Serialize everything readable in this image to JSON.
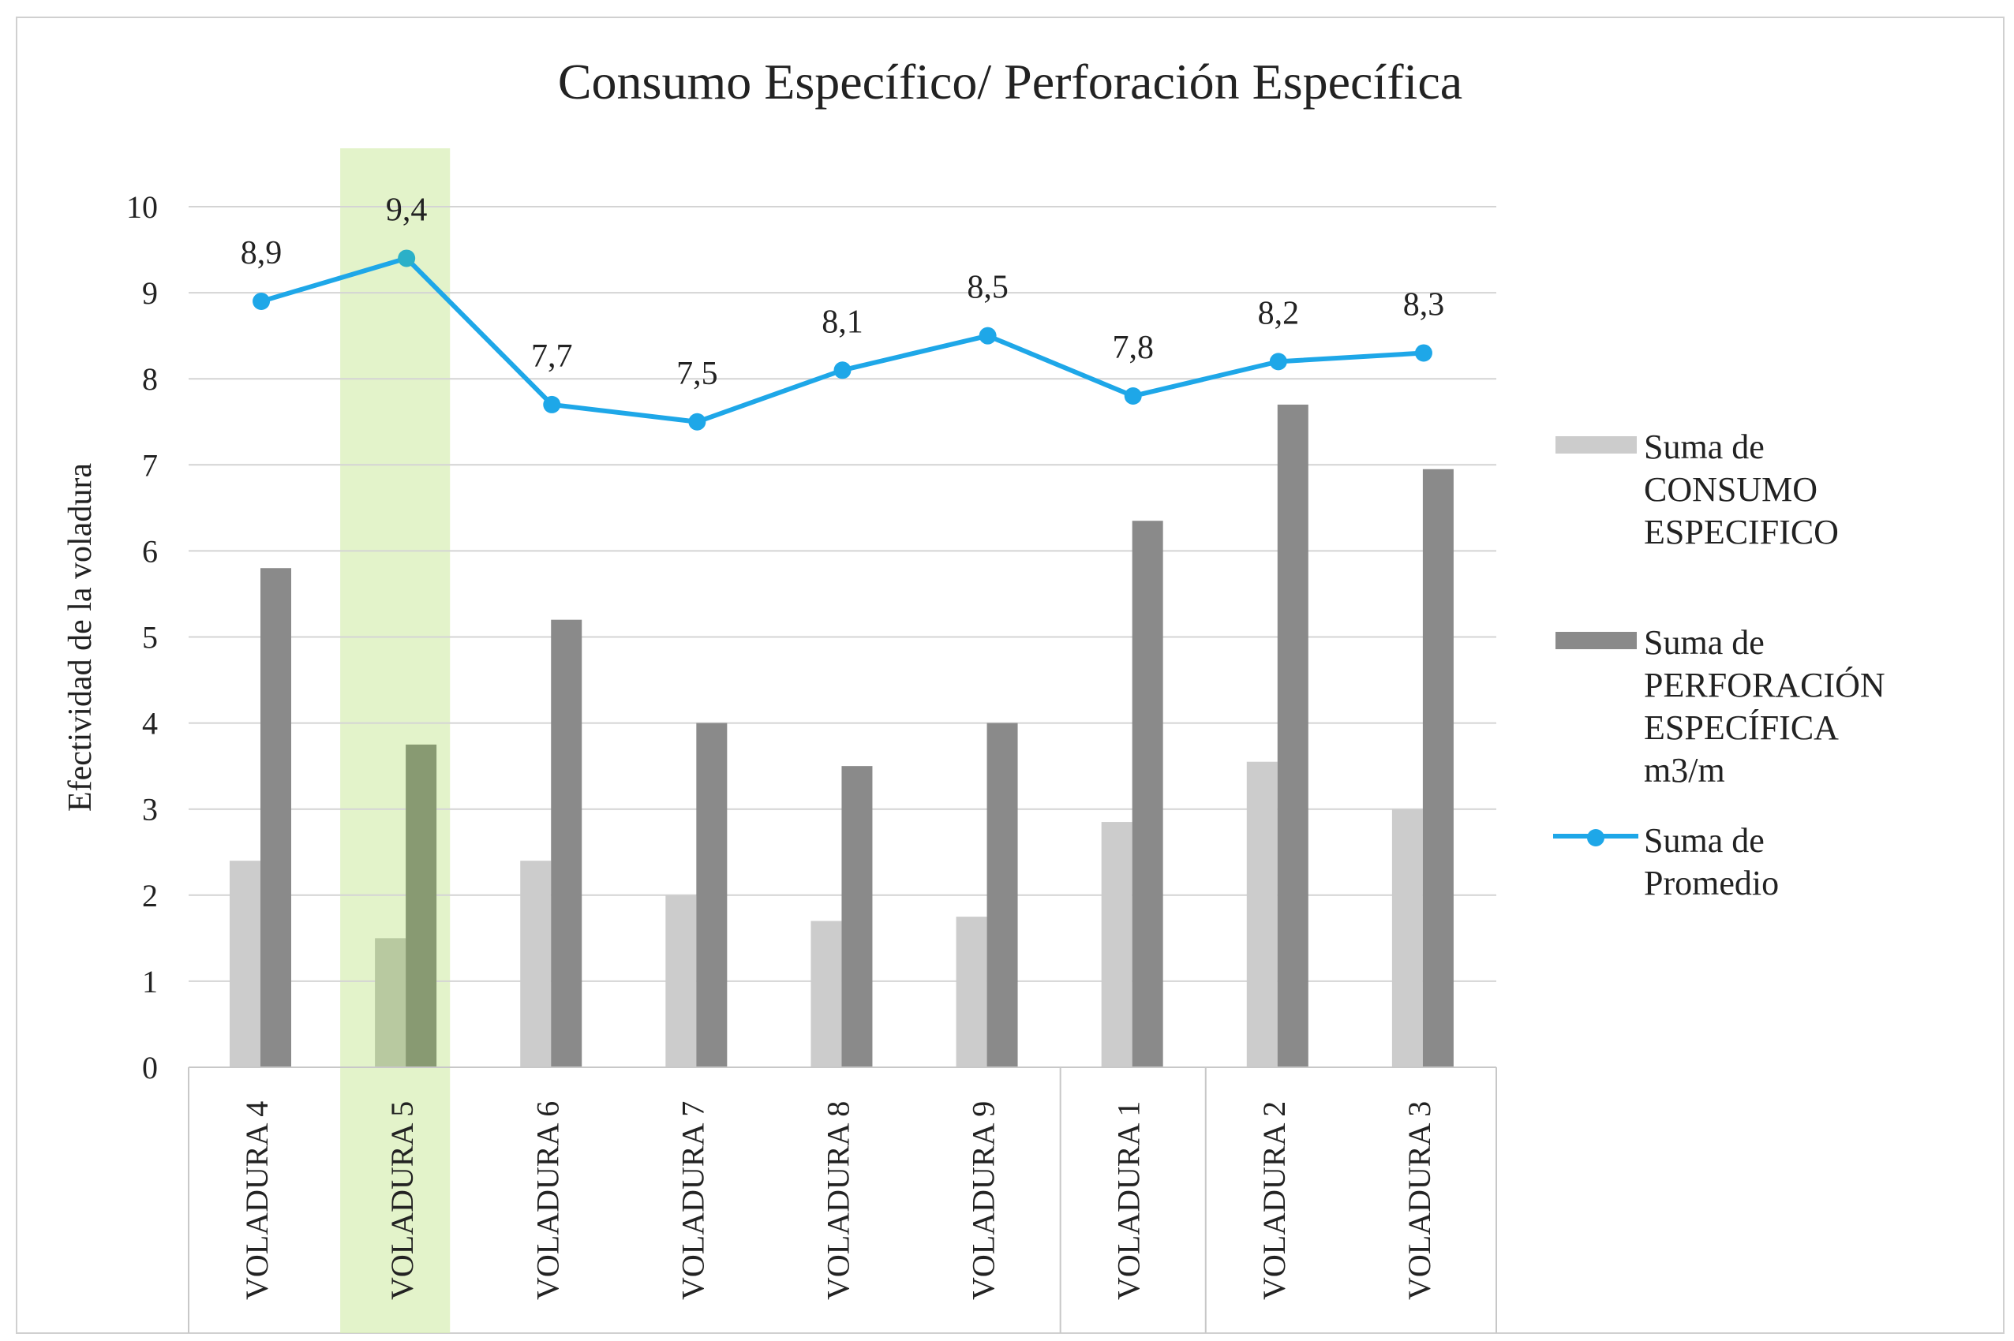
{
  "chart_data": {
    "type": "bar",
    "title": "Consumo Específico/ Perforación Específica",
    "xlabel": "",
    "ylabel": "Efectividad de la voladura",
    "ylim": [
      0,
      10
    ],
    "yticks": [
      0,
      1,
      2,
      3,
      4,
      5,
      6,
      7,
      8,
      9,
      10
    ],
    "grid": true,
    "legend_placement": "right",
    "categories": [
      "VOLADURA 4",
      "VOLADURA 5",
      "VOLADURA 6",
      "VOLADURA 7",
      "VOLADURA 8",
      "VOLADURA 9",
      "VOLADURA 1",
      "VOLADURA 2",
      "VOLADURA 3"
    ],
    "highlighted_category": "VOLADURA 5",
    "highlight_color": "#d9efb8",
    "series": [
      {
        "name": "Suma de CONSUMO ESPECIFICO",
        "legend_lines": [
          "Suma de",
          "CONSUMO",
          "ESPECIFICO"
        ],
        "type": "bar",
        "color": "#cccccc",
        "values": [
          2.4,
          1.5,
          2.4,
          2.0,
          1.7,
          1.75,
          2.85,
          3.55,
          3.0
        ]
      },
      {
        "name": "Suma de PERFORACIÓN ESPECÍFICA m3/m",
        "legend_lines": [
          "Suma de",
          "PERFORACIÓN",
          "ESPECÍFICA",
          "m3/m"
        ],
        "type": "bar",
        "color": "#8a8a8a",
        "values": [
          5.8,
          3.75,
          5.2,
          4.0,
          3.5,
          4.0,
          6.35,
          7.7,
          6.95
        ]
      },
      {
        "name": "Suma de Promedio",
        "legend_lines": [
          "Suma de",
          "Promedio"
        ],
        "type": "line",
        "color": "#1ea7e8",
        "values": [
          8.9,
          9.4,
          7.7,
          7.5,
          8.1,
          8.5,
          7.8,
          8.2,
          8.3
        ],
        "data_labels": [
          "8,9",
          "9,4",
          "7,7",
          "7,5",
          "8,1",
          "8,5",
          "7,8",
          "8,2",
          "8,3"
        ]
      }
    ]
  }
}
